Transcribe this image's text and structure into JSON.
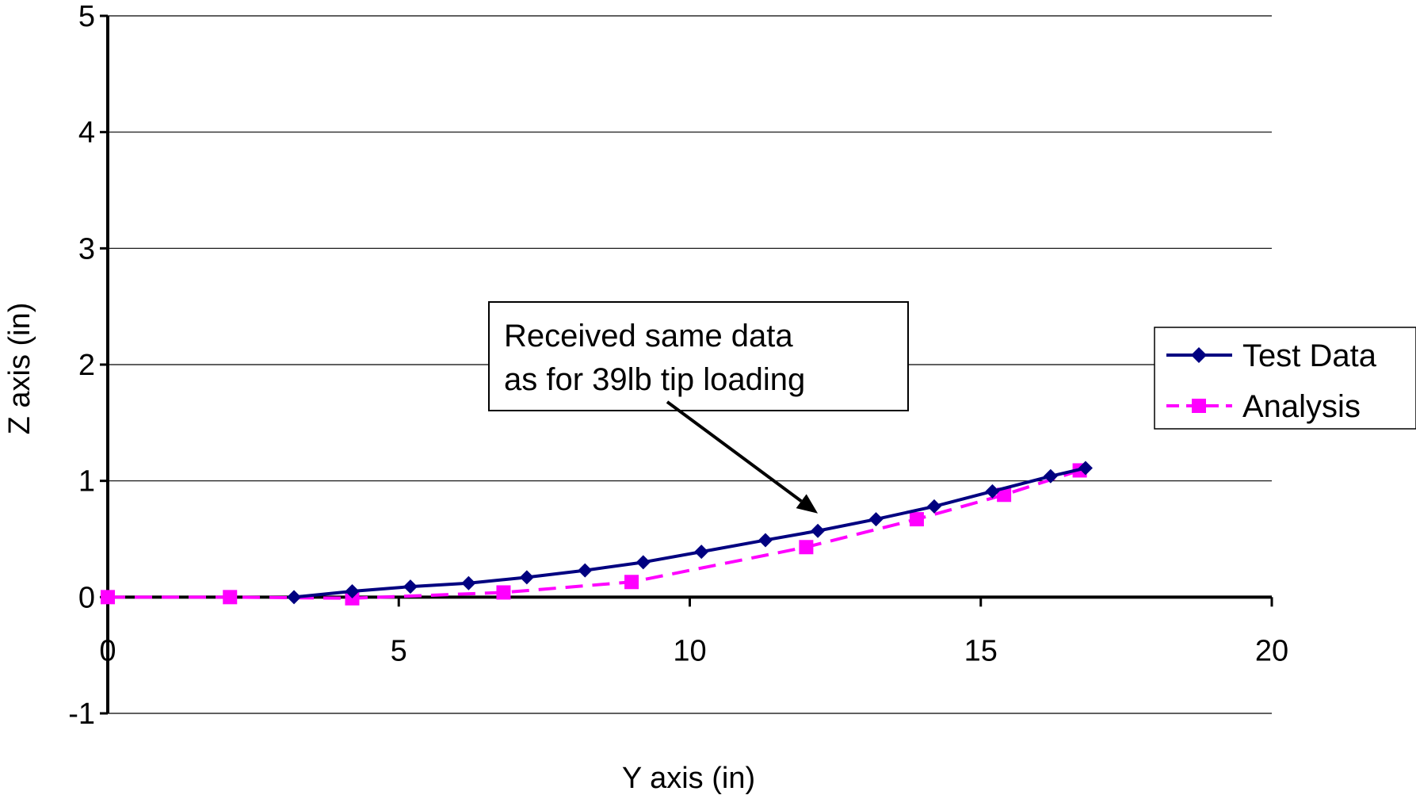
{
  "chart_data": {
    "type": "line",
    "title": "",
    "xlabel": "Y axis (in)",
    "ylabel": "Z axis (in)",
    "xlim": [
      0,
      20
    ],
    "ylim": [
      -1,
      5
    ],
    "x_ticks": [
      0,
      5,
      10,
      15,
      20
    ],
    "y_ticks": [
      -1,
      0,
      1,
      2,
      3,
      4,
      5
    ],
    "grid": "horizontal",
    "legend_position": "right",
    "series": [
      {
        "name": "Test Data",
        "color": "#000080",
        "marker": "diamond",
        "line_style": "solid",
        "x": [
          3.2,
          4.2,
          5.2,
          6.2,
          7.2,
          8.2,
          9.2,
          10.2,
          11.3,
          12.2,
          13.2,
          14.2,
          15.2,
          16.2,
          16.8
        ],
        "y": [
          0.0,
          0.05,
          0.09,
          0.12,
          0.17,
          0.23,
          0.3,
          0.39,
          0.49,
          0.57,
          0.67,
          0.78,
          0.91,
          1.04,
          1.11
        ]
      },
      {
        "name": "Analysis",
        "color": "#FF00FF",
        "marker": "square",
        "line_style": "dashed",
        "x": [
          0,
          2.1,
          4.2,
          6.8,
          9.0,
          12.0,
          13.9,
          15.4,
          16.7
        ],
        "y": [
          0,
          0,
          -0.01,
          0.04,
          0.13,
          0.43,
          0.67,
          0.88,
          1.09
        ]
      }
    ],
    "annotations": [
      {
        "lines": [
          "Received same data",
          "as for 39lb tip loading"
        ],
        "arrow_to": {
          "x": 12.2,
          "y": 0.72
        }
      }
    ]
  }
}
